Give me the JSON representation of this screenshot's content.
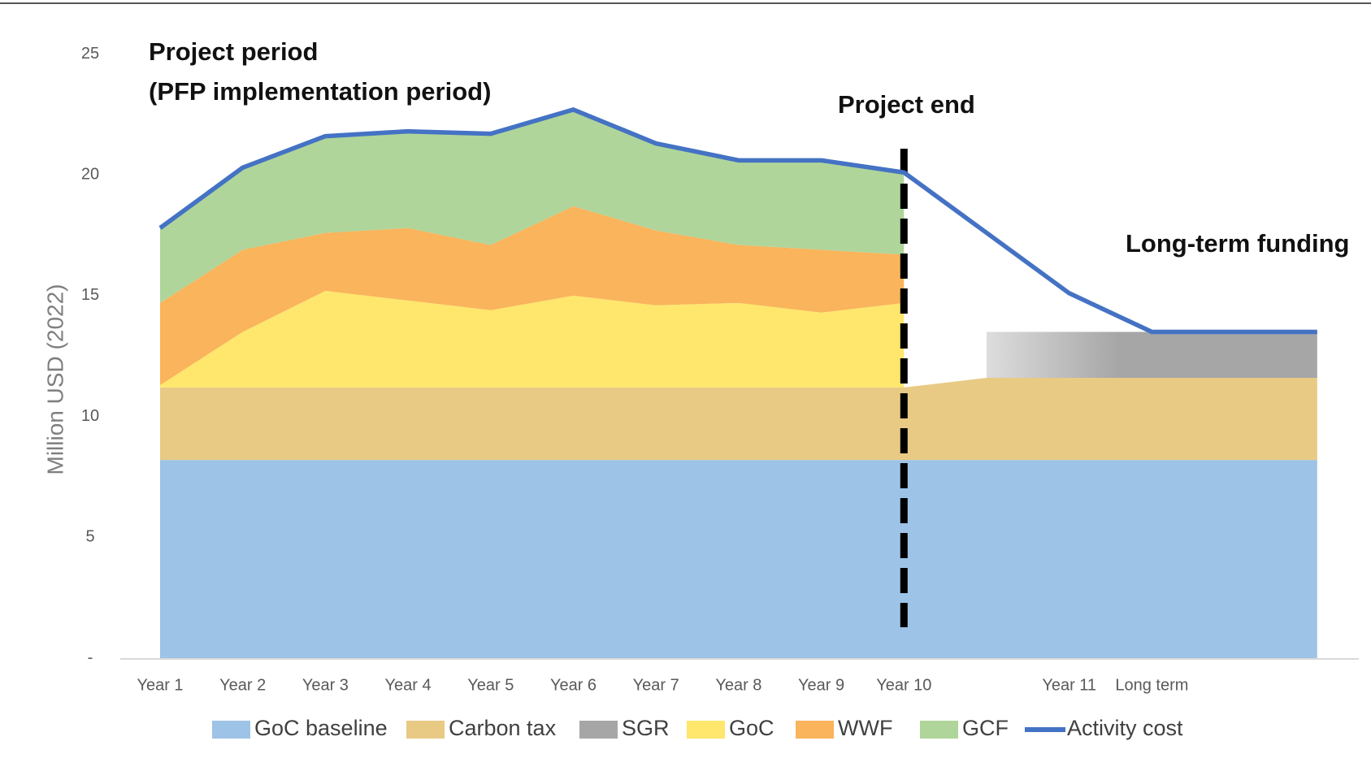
{
  "chart_data": {
    "type": "stacked_area_line",
    "y_label": "Million USD (2022)",
    "annotations": [
      "Project period",
      "(PFP implementation period)",
      "Project end",
      "Long-term funding"
    ],
    "categories": [
      "Year 1",
      "Year 2",
      "Year 3",
      "Year 4",
      "Year 5",
      "Year 6",
      "Year 7",
      "Year 8",
      "Year 9",
      "Year 10",
      null,
      "Year 11",
      "Long term",
      null,
      null
    ],
    "series": [
      {
        "name": "GoC baseline",
        "color": "#9dc3e6",
        "values": [
          8.2,
          8.2,
          8.2,
          8.2,
          8.2,
          8.2,
          8.2,
          8.2,
          8.2,
          8.2,
          8.2,
          8.2,
          8.2,
          8.2,
          8.2
        ]
      },
      {
        "name": "Carbon tax",
        "color": "#e8ca85",
        "values": [
          3.0,
          3.0,
          3.0,
          3.0,
          3.0,
          3.0,
          3.0,
          3.0,
          3.0,
          3.0,
          3.4,
          3.4,
          3.4,
          3.4,
          3.4
        ]
      },
      {
        "name": "SGR",
        "color": "#a6a6a6",
        "values": [
          null,
          null,
          null,
          null,
          null,
          null,
          null,
          null,
          null,
          null,
          1.9,
          1.9,
          1.9,
          1.9,
          1.9
        ]
      },
      {
        "name": "GoC",
        "color": "#ffe66d",
        "values": [
          0.1,
          2.3,
          4.0,
          3.6,
          3.2,
          3.8,
          3.4,
          3.5,
          3.1,
          3.5,
          null,
          null,
          null,
          null,
          null
        ]
      },
      {
        "name": "WWF",
        "color": "#f9b45c",
        "values": [
          3.4,
          3.4,
          2.4,
          3.0,
          2.7,
          3.7,
          3.1,
          2.4,
          2.6,
          2.0,
          null,
          null,
          null,
          null,
          null
        ]
      },
      {
        "name": "GCF",
        "color": "#afd59b",
        "values": [
          3.2,
          3.4,
          4.0,
          4.0,
          4.6,
          4.0,
          3.6,
          3.5,
          3.7,
          3.4,
          null,
          null,
          null,
          null,
          null
        ]
      },
      {
        "name": "Activity cost",
        "color": "#4472c4",
        "kind": "line",
        "values": [
          17.8,
          20.3,
          21.6,
          21.8,
          21.7,
          22.7,
          21.3,
          20.6,
          20.6,
          20.1,
          17.6,
          15.1,
          13.5,
          13.5,
          13.5
        ]
      }
    ],
    "ylim": [
      0,
      25
    ],
    "yticks": [
      {
        "value": 0,
        "label": "-"
      },
      5,
      10,
      15,
      20,
      25
    ]
  }
}
